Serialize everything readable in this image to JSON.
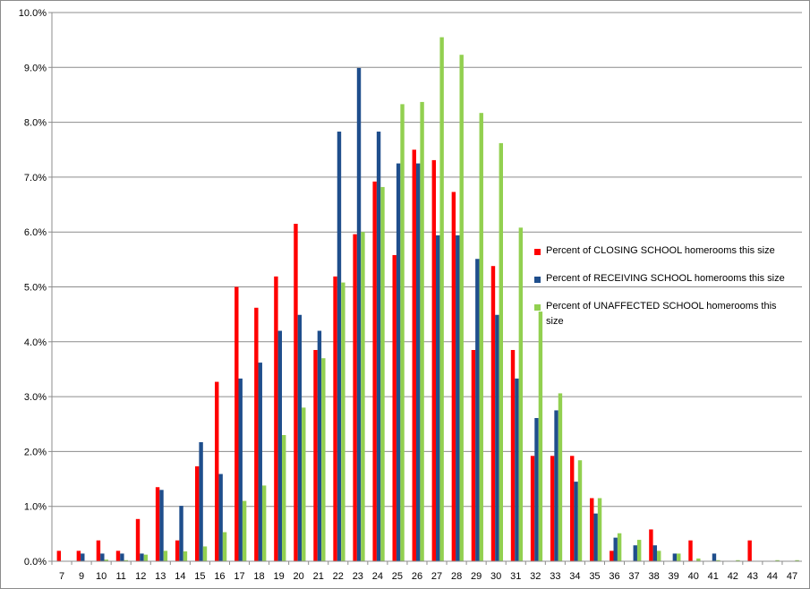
{
  "chart_data": {
    "type": "bar",
    "title": "",
    "xlabel": "",
    "ylabel": "",
    "ylim": [
      0,
      10
    ],
    "y_ticks": [
      "0.0%",
      "1.0%",
      "2.0%",
      "3.0%",
      "4.0%",
      "5.0%",
      "6.0%",
      "7.0%",
      "8.0%",
      "9.0%",
      "10.0%"
    ],
    "grid": true,
    "legend_position": "right",
    "categories": [
      "7",
      "9",
      "10",
      "11",
      "12",
      "13",
      "14",
      "15",
      "16",
      "17",
      "18",
      "19",
      "20",
      "21",
      "22",
      "23",
      "24",
      "25",
      "26",
      "27",
      "28",
      "29",
      "30",
      "31",
      "32",
      "33",
      "34",
      "35",
      "36",
      "37",
      "38",
      "39",
      "40",
      "41",
      "42",
      "43",
      "44",
      "47"
    ],
    "series": [
      {
        "name": "Percent of CLOSING SCHOOL homerooms this size",
        "color": "#ff0000",
        "values": [
          0.19,
          0.19,
          0.38,
          0.19,
          0.77,
          1.35,
          0.38,
          1.73,
          3.27,
          5.0,
          4.62,
          5.19,
          6.15,
          3.85,
          5.19,
          5.96,
          6.92,
          5.58,
          7.5,
          7.31,
          6.73,
          3.85,
          5.38,
          3.85,
          1.92,
          1.92,
          1.92,
          1.15,
          0.19,
          0.0,
          0.58,
          0.0,
          0.38,
          0.0,
          0.0,
          0.38,
          0.0,
          0.0
        ]
      },
      {
        "name": "Percent of RECEIVING SCHOOL homerooms this size",
        "color": "#1f4e8c",
        "values": [
          0.0,
          0.14,
          0.14,
          0.14,
          0.14,
          1.3,
          1.01,
          2.17,
          1.59,
          3.33,
          3.62,
          4.2,
          4.49,
          4.2,
          7.83,
          8.99,
          7.83,
          7.25,
          7.25,
          5.94,
          5.94,
          5.51,
          4.49,
          3.33,
          2.61,
          2.75,
          1.45,
          0.87,
          0.43,
          0.29,
          0.29,
          0.14,
          0.0,
          0.14,
          0.0,
          0.0,
          0.0,
          0.0
        ]
      },
      {
        "name": "Percent of UNAFFECTED SCHOOL homerooms this size",
        "color": "#92d050",
        "values": [
          0.0,
          0.0,
          0.03,
          0.02,
          0.12,
          0.19,
          0.18,
          0.27,
          0.53,
          1.1,
          1.38,
          2.3,
          2.8,
          3.7,
          5.08,
          6.0,
          6.82,
          8.33,
          8.37,
          9.55,
          9.23,
          8.17,
          7.62,
          6.08,
          4.55,
          3.06,
          1.84,
          1.15,
          0.51,
          0.39,
          0.19,
          0.14,
          0.05,
          0.02,
          0.02,
          0.0,
          0.02,
          0.02
        ]
      }
    ]
  }
}
